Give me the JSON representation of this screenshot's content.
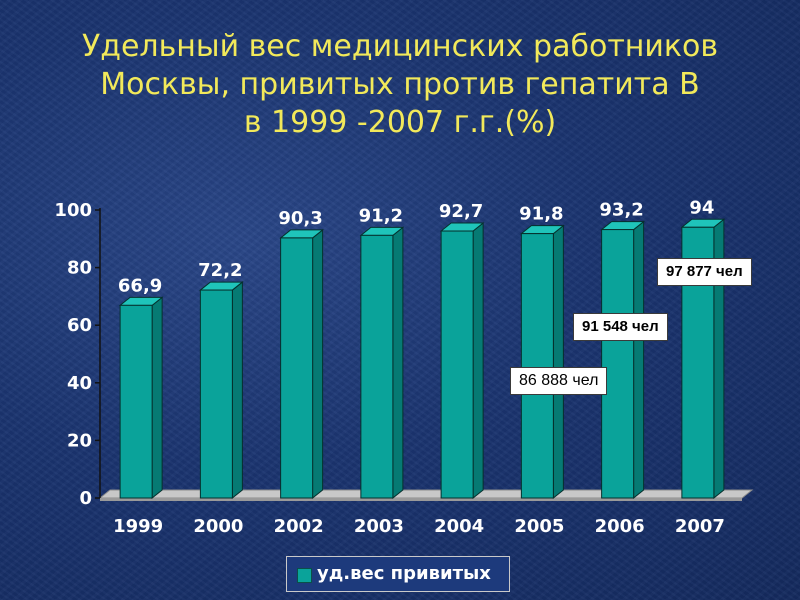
{
  "title": {
    "line1": "Удельный вес медицинских работников",
    "line2": "Москвы, привитых против гепатита В",
    "line3": "в 1999 -2007 г.г.(%)"
  },
  "chart_data": {
    "type": "bar",
    "categories": [
      "1999",
      "2000",
      "2002",
      "2003",
      "2004",
      "2005",
      "2006",
      "2007"
    ],
    "series": [
      {
        "name": "уд.вес привитых",
        "values": [
          66.9,
          72.2,
          90.3,
          91.2,
          92.7,
          91.8,
          93.2,
          94
        ]
      }
    ],
    "value_labels": [
      "66,9",
      "72,2",
      "90,3",
      "91,2",
      "92,7",
      "91,8",
      "93,2",
      "94"
    ],
    "ylim": [
      0,
      100
    ],
    "yticks": [
      "0",
      "20",
      "40",
      "60",
      "80",
      "100"
    ],
    "legend_position": "bottom",
    "bar_color": "#0aa39a",
    "annotations": [
      "86 888 чел",
      "91 548 чел",
      "97 877 чел"
    ]
  },
  "colors": {
    "title": "#f2e95a",
    "background": "#1b3470",
    "bar": "#0aa39a"
  }
}
